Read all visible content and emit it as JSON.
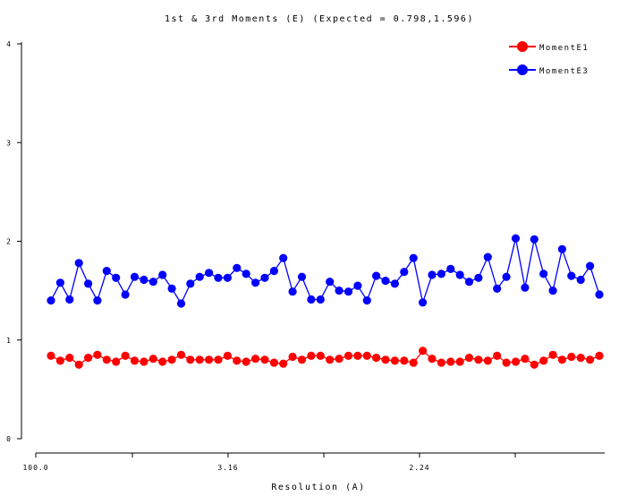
{
  "chart_data": {
    "type": "line",
    "title": "1st & 3rd Moments (E)  (Expected = 0.798,1.596)",
    "xlabel": "Resolution (A)",
    "ylabel": "",
    "x_tick_labels": [
      "100.0",
      "3.16",
      "2.24"
    ],
    "y_ticks": [
      "0",
      "1",
      "2",
      "3",
      "4"
    ],
    "ylim": [
      0,
      4
    ],
    "legend_position": "top-right",
    "series": [
      {
        "name": "MomentE1",
        "color": "#ff0000",
        "values": [
          0.84,
          0.79,
          0.82,
          0.75,
          0.82,
          0.85,
          0.8,
          0.78,
          0.84,
          0.79,
          0.78,
          0.81,
          0.78,
          0.8,
          0.85,
          0.8,
          0.8,
          0.8,
          0.8,
          0.84,
          0.79,
          0.78,
          0.81,
          0.8,
          0.77,
          0.76,
          0.83,
          0.8,
          0.84,
          0.84,
          0.8,
          0.81,
          0.84,
          0.84,
          0.84,
          0.82,
          0.8,
          0.79,
          0.79,
          0.77,
          0.89,
          0.81,
          0.77,
          0.78,
          0.78,
          0.82,
          0.8,
          0.79,
          0.84,
          0.77,
          0.78,
          0.81,
          0.75,
          0.79,
          0.85,
          0.8,
          0.83,
          0.82,
          0.8,
          0.84
        ]
      },
      {
        "name": "MomentE3",
        "color": "#0000ff",
        "values": [
          1.4,
          1.58,
          1.41,
          1.78,
          1.57,
          1.4,
          1.7,
          1.63,
          1.46,
          1.64,
          1.61,
          1.59,
          1.66,
          1.52,
          1.37,
          1.57,
          1.64,
          1.68,
          1.63,
          1.63,
          1.73,
          1.67,
          1.58,
          1.63,
          1.7,
          1.83,
          1.49,
          1.64,
          1.41,
          1.41,
          1.59,
          1.5,
          1.49,
          1.55,
          1.4,
          1.65,
          1.6,
          1.57,
          1.69,
          1.83,
          1.38,
          1.66,
          1.67,
          1.72,
          1.66,
          1.59,
          1.63,
          1.84,
          1.52,
          1.64,
          2.03,
          1.53,
          2.02,
          1.67,
          1.5,
          1.92,
          1.65,
          1.61,
          1.75,
          1.46
        ]
      }
    ]
  }
}
